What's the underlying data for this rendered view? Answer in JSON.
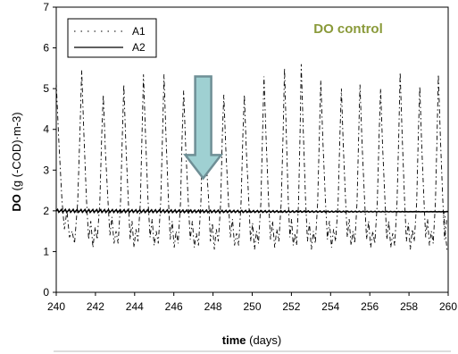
{
  "chart_data": {
    "type": "line",
    "title": "",
    "annotation": "DO control",
    "annotation_color": "#8a9a3a",
    "xlabel_bold": "time",
    "xlabel_rest": " (days)",
    "ylabel_bold": "DO",
    "ylabel_rest": " (g (-COD)·m-3)",
    "xlim": [
      240,
      260
    ],
    "ylim": [
      0,
      7
    ],
    "xticks": [
      240,
      242,
      244,
      246,
      248,
      250,
      252,
      254,
      256,
      258,
      260
    ],
    "yticks": [
      0,
      1,
      2,
      3,
      4,
      5,
      6,
      7
    ],
    "legend": {
      "position": "top-left",
      "entries": [
        "A1",
        "A2"
      ]
    },
    "arrow": {
      "x": 247.5,
      "y_top": 5.3,
      "y_bottom": 2.8,
      "color": "#9fd0d2",
      "edge": "#6f8f96"
    },
    "series": [
      {
        "name": "A1",
        "style": "dashed",
        "days": [
          240.0,
          241.3,
          242.4,
          243.45,
          244.45,
          245.5,
          246.5,
          247.55,
          248.55,
          249.6,
          250.6,
          251.65,
          252.5,
          253.5,
          254.55,
          255.5,
          256.55,
          257.55,
          258.55,
          259.5
        ],
        "peaks": [
          5.15,
          5.45,
          4.85,
          5.1,
          5.35,
          5.35,
          4.95,
          4.5,
          4.85,
          4.85,
          5.3,
          5.5,
          5.6,
          5.2,
          5.0,
          5.1,
          5.0,
          5.4,
          5.05,
          5.35
        ],
        "troughs": [
          1.3,
          1.05,
          1.15,
          1.05,
          1.1,
          1.05,
          1.05,
          1.0,
          1.1,
          1.0,
          1.05,
          1.1,
          1.0,
          1.05,
          1.1,
          1.05,
          1.05,
          1.0,
          1.1,
          1.05
        ]
      },
      {
        "name": "A2",
        "style": "solid",
        "value": 2.0,
        "ripple": 0.04
      }
    ]
  }
}
